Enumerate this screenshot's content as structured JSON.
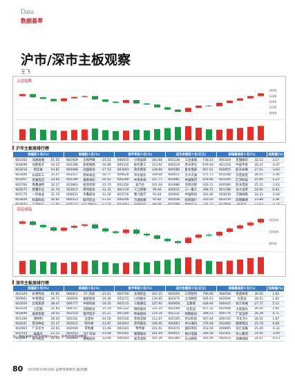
{
  "header": {
    "section_en": "Data",
    "section_cn": "数据荟萃"
  },
  "article": {
    "title": "沪市/深市主板观察",
    "author": "王飞"
  },
  "charts": [
    {
      "type": "candlestick",
      "title": "上证指数",
      "ylim": [
        2900,
        3500
      ],
      "yticks": [
        3000,
        3100,
        3200,
        3300,
        3400
      ],
      "open": [
        3300,
        3336,
        3280,
        3250,
        3210,
        3260,
        3285,
        3300,
        3240,
        3200,
        3180,
        3230,
        3170,
        3150,
        3100,
        3060,
        3020,
        3090,
        3130,
        3120,
        3180,
        3220,
        3260,
        3300
      ],
      "close": [
        3336,
        3280,
        3250,
        3210,
        3260,
        3285,
        3300,
        3240,
        3200,
        3180,
        3230,
        3170,
        3150,
        3100,
        3060,
        3020,
        3090,
        3130,
        3120,
        3180,
        3220,
        3260,
        3300,
        3350
      ],
      "high": [
        3350,
        3345,
        3290,
        3262,
        3272,
        3295,
        3312,
        3305,
        3248,
        3212,
        3242,
        3236,
        3182,
        3158,
        3108,
        3070,
        3098,
        3140,
        3142,
        3190,
        3228,
        3270,
        3310,
        3362
      ],
      "low": [
        3290,
        3272,
        3240,
        3198,
        3202,
        3252,
        3275,
        3232,
        3192,
        3170,
        3172,
        3160,
        3142,
        3092,
        3050,
        3008,
        3012,
        3082,
        3110,
        3112,
        3172,
        3212,
        3250,
        3292
      ],
      "volume": [
        4800,
        5200,
        4600,
        4300,
        4100,
        4500,
        4700,
        5100,
        4400,
        4000,
        4200,
        4600,
        4300,
        4900,
        5300,
        5800,
        6200,
        5500,
        4800,
        4600,
        5000,
        5400,
        5900,
        6300
      ],
      "vlim": [
        0,
        8000
      ]
    },
    {
      "type": "candlestick",
      "title": "深证成指",
      "ylim": [
        9200,
        10800
      ],
      "yticks": [
        9500,
        10000,
        10500
      ],
      "open": [
        10350,
        10450,
        10300,
        10200,
        10050,
        10180,
        10260,
        10320,
        10150,
        10020,
        9950,
        10100,
        9920,
        9850,
        9700,
        9600,
        9520,
        9750,
        9880,
        9840,
        10000,
        10150,
        10280,
        10400
      ],
      "close": [
        10450,
        10300,
        10200,
        10050,
        10180,
        10260,
        10320,
        10150,
        10020,
        9950,
        10100,
        9920,
        9850,
        9700,
        9600,
        9520,
        9750,
        9880,
        9840,
        10000,
        10150,
        10280,
        10400,
        10560
      ],
      "high": [
        10510,
        10510,
        10360,
        10260,
        10240,
        10320,
        10380,
        10380,
        10210,
        10080,
        10160,
        10160,
        9980,
        9910,
        9760,
        9660,
        9810,
        9940,
        9940,
        10060,
        10210,
        10340,
        10460,
        10620
      ],
      "low": [
        10290,
        10240,
        10140,
        9990,
        9990,
        10120,
        10200,
        10090,
        9960,
        9890,
        9890,
        9860,
        9790,
        9640,
        9540,
        9460,
        9460,
        9690,
        9780,
        9780,
        9940,
        10090,
        10220,
        10340
      ],
      "volume": [
        6500,
        7000,
        6200,
        5800,
        5600,
        6000,
        6400,
        6800,
        5900,
        5400,
        5700,
        6100,
        5800,
        6500,
        7100,
        7800,
        8300,
        7400,
        6500,
        6200,
        6700,
        7200,
        7900,
        8400
      ],
      "vlim": [
        0,
        10000
      ]
    }
  ],
  "tables": [
    {
      "title": "沪市主板周排行榜",
      "groups": [
        "涨幅前十名(%)",
        "跌幅前十名(%)",
        "换手率前十名(%)",
        "成交金额前十名(亿元)",
        "振幅最高前十名(%)",
        "涨跌幅(%)"
      ],
      "rows": [
        [
          "603162",
          "海通发展",
          "51.55",
          "601929",
          "吉视传媒",
          "-23.52",
          "600415",
          "小商品城",
          "163.84",
          "601138",
          "工业富联",
          "730.23",
          "605319",
          "无锡振华",
          "32.12",
          "3.17"
        ],
        [
          "600699",
          "均胜电子",
          "44.25",
          "605398",
          "新炬网络",
          "-16.88",
          "600320",
          "振华重工",
          "153.92",
          "600519",
          "贵州茅台",
          "679.49",
          "601318",
          "中国平安",
          "28.47",
          "-4.47"
        ],
        [
          "603016",
          "新宏泰",
          "43.81",
          "605088",
          "冠盛股份",
          "-17.53",
          "603093",
          "南华期货",
          "128.84",
          "600580",
          "卧龙电驱",
          "667.01",
          "600855",
          "航天长峰",
          "27.61",
          "-3.62"
        ],
        [
          "601606",
          "长城军工",
          "35.47",
          "603517",
          "绝味食品",
          "-16.77",
          "600626",
          "申达股份",
          "109.68",
          "600611",
          "大众交通",
          "475.73",
          "603168",
          "莎普爱思",
          "26.01",
          "-2.46"
        ],
        [
          "601007",
          "金陵饭店",
          "33.64",
          "605189",
          "富春染织",
          "-16.42",
          "600280",
          "中央商场",
          "107.77",
          "601881",
          "中国银河",
          "429.66",
          "603160",
          "汇顶科技",
          "25.60",
          "5.23"
        ],
        [
          "603766",
          "隆鑫通用",
          "32.17",
          "603863",
          "松炀资源",
          "-12.70",
          "603350",
          "安乃达",
          "101.64",
          "603986",
          "兆易创新",
          "420.31",
          "600580",
          "卧龙电驱",
          "25.21",
          "-2.63"
        ],
        [
          "600075",
          "新疆天业",
          "31.70",
          "603615",
          "茶花股份",
          "-12.32",
          "601116",
          "三江购物",
          "99.46",
          "600031",
          "三一重工",
          "398.75",
          "601788",
          "光大证券",
          "24.95",
          "0.93"
        ],
        [
          "605179",
          "一鸣食品",
          "31.70",
          "600621",
          "华鑫股份",
          "-12.28",
          "603716",
          "塞力医疗",
          "91.84",
          "600941",
          "中国移动",
          "391.06",
          "603039",
          "泛微网络",
          "24.22",
          "-4.94"
        ],
        [
          "603626",
          "科森科技",
          "30.81",
          "600513",
          "联环药业",
          "-11.91",
          "600246",
          "万通发展",
          "91.82",
          "600036",
          "招商银行",
          "350.26",
          "603259",
          "药明康德",
          "23.88",
          "3.38"
        ],
        [
          "603843",
          "正平股份",
          "27.40",
          "600510",
          "*ST 黑牡丹",
          "-11.54",
          "603083",
          "剑桥科技",
          "88.88",
          "601899",
          "紫金矿业",
          "336.75",
          "603908",
          "牧高笛",
          "23.67",
          "-3.74"
        ]
      ]
    },
    {
      "title": "深市主板周排行榜",
      "groups": [
        "涨幅前十名(%)",
        "跌幅前十名(%)",
        "换手率前十名(%)",
        "成交金额前十名(亿元)",
        "振幅最高前十名(%)",
        "涨跌幅(%)"
      ],
      "rows": [
        [
          "001324",
          "长青科技",
          "61.65",
          "000611",
          "ST 天润",
          "-21.61",
          "002750",
          "龙津药业",
          "167.22",
          "002050",
          "三花智控",
          "790.06",
          "000558",
          "莱茵体育",
          "30.05",
          "1.62"
        ],
        [
          "000961",
          "中南建设",
          "39.71",
          "000926",
          "福星股份",
          "-19.36",
          "002272",
          "川润股份",
          "134.65",
          "002475",
          "立讯精密",
          "585.61",
          "002594",
          "比亚迪",
          "28.51",
          "1.60"
        ],
        [
          "002059",
          "云南旅游",
          "38.47",
          "000777",
          "中核科技",
          "-18.35",
          "002115",
          "三维通信",
          "125.92",
          "000858",
          "五粮液",
          "428.46",
          "000425",
          "徐工机械",
          "27.37",
          "5.12"
        ],
        [
          "002029",
          "七匹狼",
          "31.93",
          "000757",
          "浩物股份",
          "-15.59",
          "001332",
          "锡装股份",
          "125.19",
          "002594",
          "比亚迪",
          "427.32",
          "002008",
          "大族激光",
          "26.95",
          "2.95"
        ],
        [
          "002849",
          "威星智能",
          "28.42",
          "002519",
          "银河电子",
          "-15.11",
          "001260",
          "坤泰股份",
          "116.18",
          "002131",
          "利欧股份",
          "389.23",
          "000776",
          "广发证券",
          "26.38",
          "4.71"
        ],
        [
          "001309",
          "德明利",
          "28.45",
          "002161",
          "远望谷",
          "-14.56",
          "002530",
          "金财互联",
          "112.87",
          "002195",
          "岩山科技",
          "367.44",
          "000725",
          "京东方A",
          "26.01",
          "1.87"
        ],
        [
          "002041",
          "登海种业",
          "25.37",
          "002615",
          "哈尔斯",
          "-13.97",
          "002663",
          "普邦股份",
          "106.95",
          "000063",
          "中兴通讯",
          "376.48",
          "002460",
          "赣锋锂业",
          "25.79",
          "0.68"
        ],
        [
          "002963",
          "广东宏大",
          "22.93",
          "002940",
          "昂利康",
          "-13.46",
          "002181",
          "粤传媒",
          "101.61",
          "002074",
          "国轩高科",
          "353.04",
          "000895",
          "双汇发展",
          "25.40",
          "-0.32"
        ],
        [
          "002154",
          "报喜鸟",
          "22.13",
          "002052",
          "*ST 同洲",
          "-13.08",
          "002565",
          "顺灏股份",
          "101.69",
          "000651",
          "格力电器",
          "346.58",
          "002301",
          "齐心集团",
          "24.95",
          "-3.40"
        ],
        [
          "002067",
          "景兴纸业",
          "22.04",
          "002843",
          "泰嘉股份",
          "-12.66",
          "000581",
          "威孚高科",
          "101.39",
          "002384",
          "东山精密",
          "341.09",
          "002415",
          "海康威视",
          "24.07",
          "-0.13"
        ]
      ]
    }
  ],
  "note": "注：数据来源于东方财富Choice，证券市场周刊整理",
  "footer": {
    "page": "80",
    "issue": "2024年10月19日 证券市场周刊 第36期"
  }
}
